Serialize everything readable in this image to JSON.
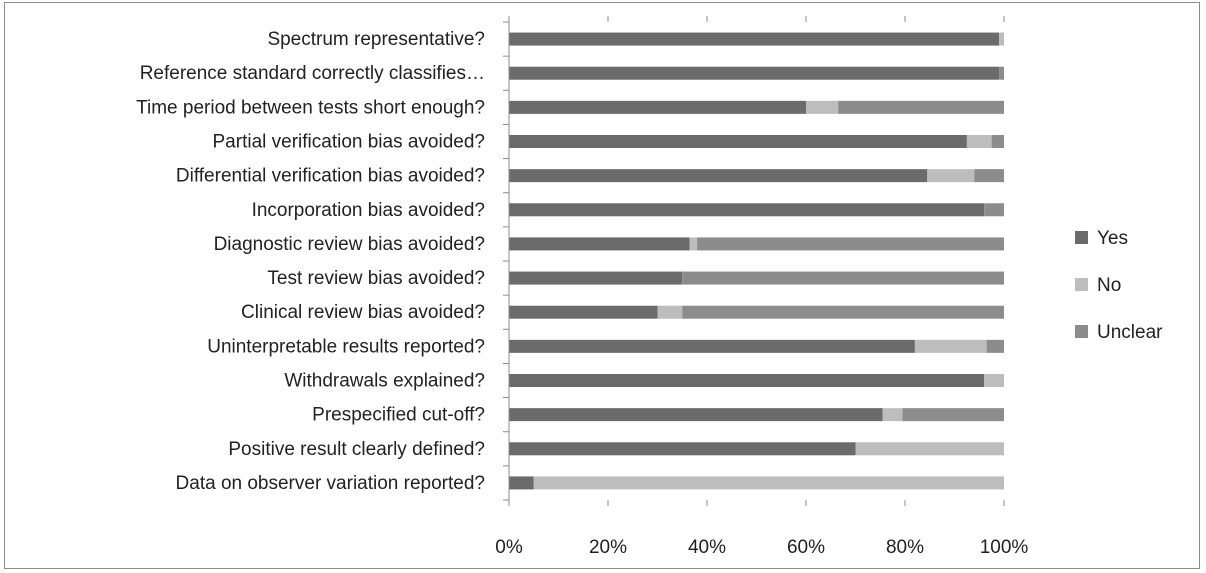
{
  "chart_data": {
    "type": "bar",
    "orientation": "horizontal",
    "stacking": "percent",
    "categories": [
      "Spectrum representative?",
      "Reference standard correctly classifies…",
      "Time period between tests short enough?",
      "Partial verification bias avoided?",
      "Differential verification bias avoided?",
      "Incorporation bias avoided?",
      "Diagnostic review bias avoided?",
      "Test review bias avoided?",
      "Clinical review bias avoided?",
      "Uninterpretable results reported?",
      "Withdrawals explained?",
      "Prespecified cut-off?",
      "Positive result clearly defined?",
      "Data on observer variation reported?"
    ],
    "series": [
      {
        "name": "Yes",
        "color": "#6b6b6b",
        "values": [
          99,
          99,
          60,
          92.5,
          84.5,
          96,
          36.5,
          35,
          30,
          82,
          96,
          75.5,
          70,
          5
        ]
      },
      {
        "name": "No",
        "color": "#bdbdbd",
        "values": [
          1,
          0,
          6.5,
          5,
          9.5,
          0,
          1.5,
          0,
          5,
          14.5,
          4,
          4,
          30,
          95
        ]
      },
      {
        "name": "Unclear",
        "color": "#8c8c8c",
        "values": [
          0,
          1,
          33.5,
          2.5,
          6,
          4,
          62,
          65,
          65,
          3.5,
          0,
          20.5,
          0,
          0
        ]
      }
    ],
    "xlim": [
      0,
      100
    ],
    "xticks": [
      "0%",
      "20%",
      "40%",
      "60%",
      "80%",
      "100%"
    ],
    "xlabel": "",
    "ylabel": "",
    "title": "",
    "grid": false,
    "legend": "right"
  }
}
